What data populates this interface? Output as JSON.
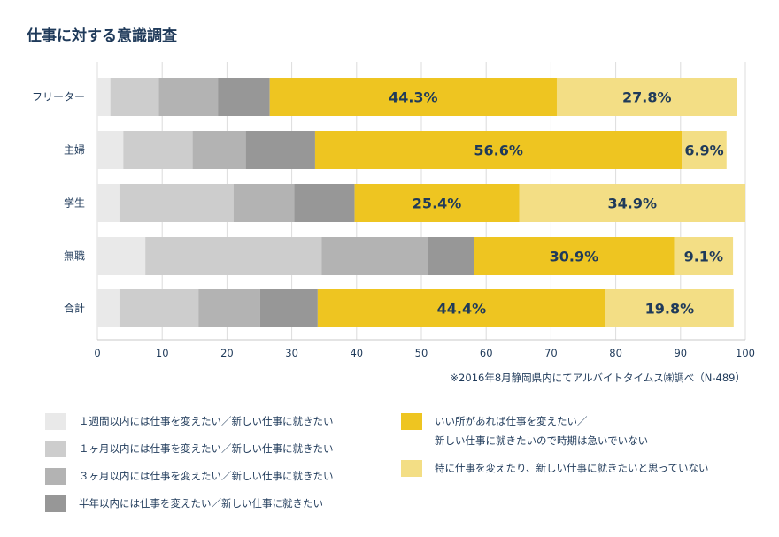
{
  "title": "仕事に対する意識調査",
  "note": "※2016年8月静岡県内にてアルバイトタイムス㈱調べ（N-489）",
  "colors": [
    "#e9e9e9",
    "#cdcdcd",
    "#b3b3b3",
    "#979797",
    "#eec521",
    "#f3de85"
  ],
  "legend": [
    "１週間以内には仕事を変えたい／新しい仕事に就きたい",
    "１ヶ月以内には仕事を変えたい／新しい仕事に就きたい",
    "３ヶ月以内には仕事を変えたい／新しい仕事に就きたい",
    "半年以内には仕事を変えたい／新しい仕事に就きたい",
    "いい所があれば仕事を変えたい／\n新しい仕事に就きたいので時期は急いでいない",
    "特に仕事を変えたり、新しい仕事に就きたいと思っていない"
  ],
  "chart_data": {
    "type": "bar",
    "orientation": "horizontal",
    "stacked": true,
    "title": "仕事に対する意識調査",
    "categories": [
      "フリーター",
      "主婦",
      "学生",
      "無職",
      "合計"
    ],
    "xlim": [
      0,
      100
    ],
    "xticks": [
      0,
      10,
      20,
      30,
      40,
      50,
      60,
      70,
      80,
      90,
      100
    ],
    "series": [
      {
        "name": "１週間以内には仕事を変えたい／新しい仕事に就きたい",
        "values": [
          2.0,
          4.0,
          3.4,
          7.4,
          3.4
        ]
      },
      {
        "name": "１ヶ月以内には仕事を変えたい／新しい仕事に就きたい",
        "values": [
          7.5,
          10.7,
          17.6,
          27.2,
          12.2
        ]
      },
      {
        "name": "３ヶ月以内には仕事を変えたい／新しい仕事に就きたい",
        "values": [
          9.1,
          8.2,
          9.4,
          16.4,
          9.5
        ]
      },
      {
        "name": "半年以内には仕事を変えたい／新しい仕事に就きたい",
        "values": [
          8.0,
          10.7,
          9.3,
          7.1,
          8.9
        ]
      },
      {
        "name": "いい所があれば仕事を変えたい／新しい仕事に就きたいので時期は急いでいない",
        "values": [
          44.3,
          56.6,
          25.4,
          30.9,
          44.4
        ]
      },
      {
        "name": "特に仕事を変えたり、新しい仕事に就きたいと思っていない",
        "values": [
          27.8,
          6.9,
          34.9,
          9.1,
          19.8
        ]
      }
    ],
    "labels": [
      [
        "",
        "",
        "",
        "",
        "44.3%",
        "27.8%"
      ],
      [
        "",
        "",
        "",
        "",
        "56.6%",
        "6.9%"
      ],
      [
        "",
        "",
        "",
        "",
        "25.4%",
        "34.9%"
      ],
      [
        "",
        "",
        "",
        "",
        "30.9%",
        "9.1%"
      ],
      [
        "",
        "",
        "",
        "",
        "44.4%",
        "19.8%"
      ]
    ],
    "grid": true,
    "legend_position": "bottom"
  }
}
